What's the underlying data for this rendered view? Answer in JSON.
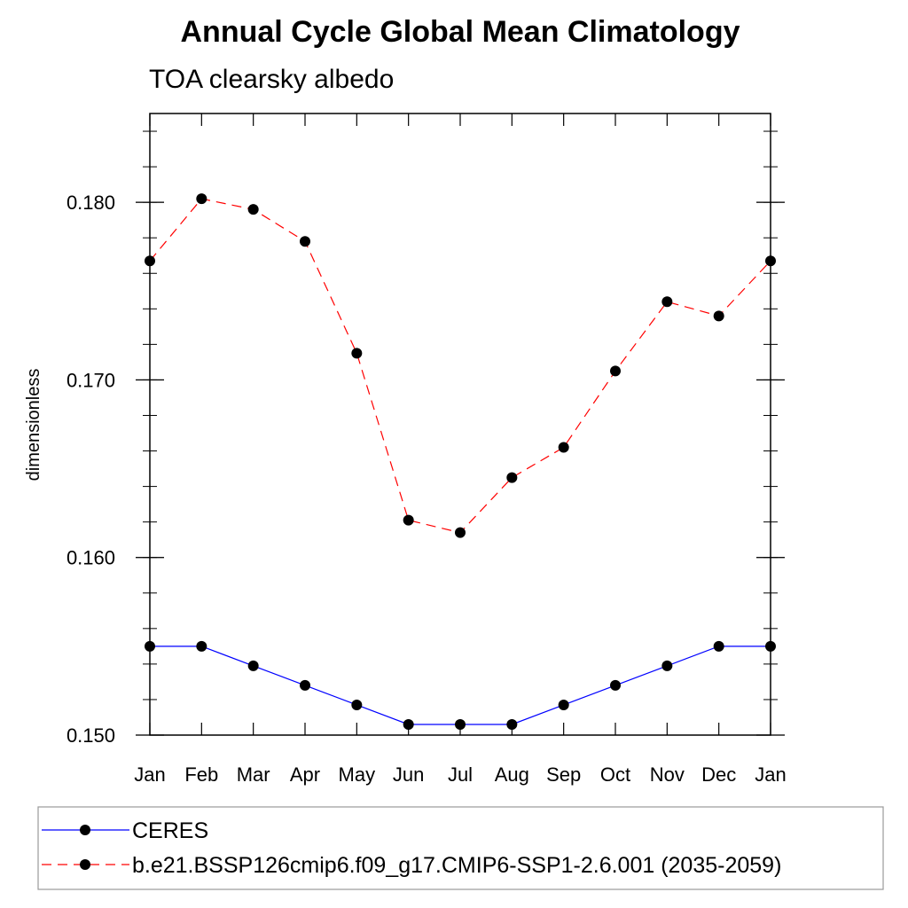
{
  "chart_data": {
    "type": "line",
    "title": "Annual Cycle Global Mean Climatology",
    "subtitle": "TOA clearsky albedo",
    "xlabel": "",
    "ylabel": "dimensionless",
    "categories": [
      "Jan",
      "Feb",
      "Mar",
      "Apr",
      "May",
      "Jun",
      "Jul",
      "Aug",
      "Sep",
      "Oct",
      "Nov",
      "Dec",
      "Jan"
    ],
    "ylim": [
      0.15,
      0.185
    ],
    "yticks": [
      0.15,
      0.16,
      0.17,
      0.18
    ],
    "ytick_labels": [
      "0.150",
      "0.160",
      "0.170",
      "0.180"
    ],
    "grid": false,
    "legend_position": "bottom",
    "series": [
      {
        "name": "CERES",
        "color": "#0000ff",
        "line_style": "solid",
        "marker": "filled-circle",
        "values": [
          0.155,
          0.155,
          0.1539,
          0.1528,
          0.1517,
          0.1506,
          0.1506,
          0.1506,
          0.1517,
          0.1528,
          0.1539,
          0.155,
          0.155
        ]
      },
      {
        "name": "b.e21.BSSP126cmip6.f09_g17.CMIP6-SSP1-2.6.001 (2035-2059)",
        "color": "#ff0000",
        "line_style": "dashed",
        "marker": "filled-circle",
        "values": [
          0.1767,
          0.1802,
          0.1796,
          0.1778,
          0.1715,
          0.1621,
          0.1614,
          0.1645,
          0.1662,
          0.1705,
          0.1744,
          0.1736,
          0.1767
        ]
      }
    ]
  }
}
